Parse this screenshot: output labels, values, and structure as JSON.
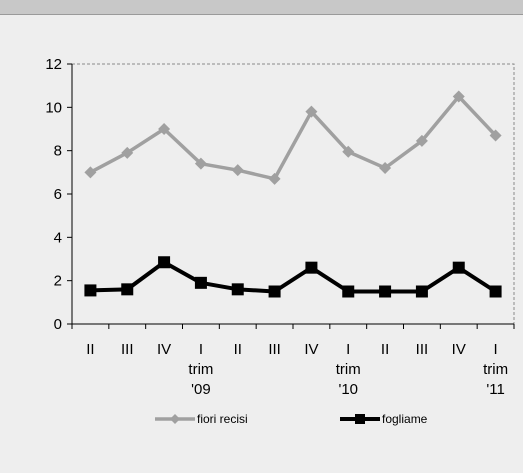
{
  "chart_data": {
    "type": "line",
    "categories": [
      [
        "II"
      ],
      [
        "III"
      ],
      [
        "IV"
      ],
      [
        "I",
        "trim",
        "'09"
      ],
      [
        "II"
      ],
      [
        "III"
      ],
      [
        "IV"
      ],
      [
        "I",
        "trim",
        "'10"
      ],
      [
        "II"
      ],
      [
        "III"
      ],
      [
        "IV"
      ],
      [
        "I",
        "trim",
        "'11"
      ]
    ],
    "series": [
      {
        "name": "fiori recisi",
        "color": "#a0a0a0",
        "marker": "diamond",
        "values": [
          7.0,
          7.9,
          9.0,
          7.4,
          7.1,
          6.7,
          9.8,
          7.95,
          7.2,
          8.45,
          10.5,
          8.7
        ]
      },
      {
        "name": "fogliame",
        "color": "#000000",
        "marker": "square",
        "values": [
          1.55,
          1.6,
          2.85,
          1.9,
          1.6,
          1.5,
          2.6,
          1.5,
          1.5,
          1.5,
          2.6,
          1.5
        ]
      }
    ],
    "yticks": [
      "0",
      "2",
      "4",
      "6",
      "8",
      "10",
      "12"
    ],
    "ylim": [
      0,
      12
    ],
    "grid": false,
    "legend": "bottom"
  }
}
